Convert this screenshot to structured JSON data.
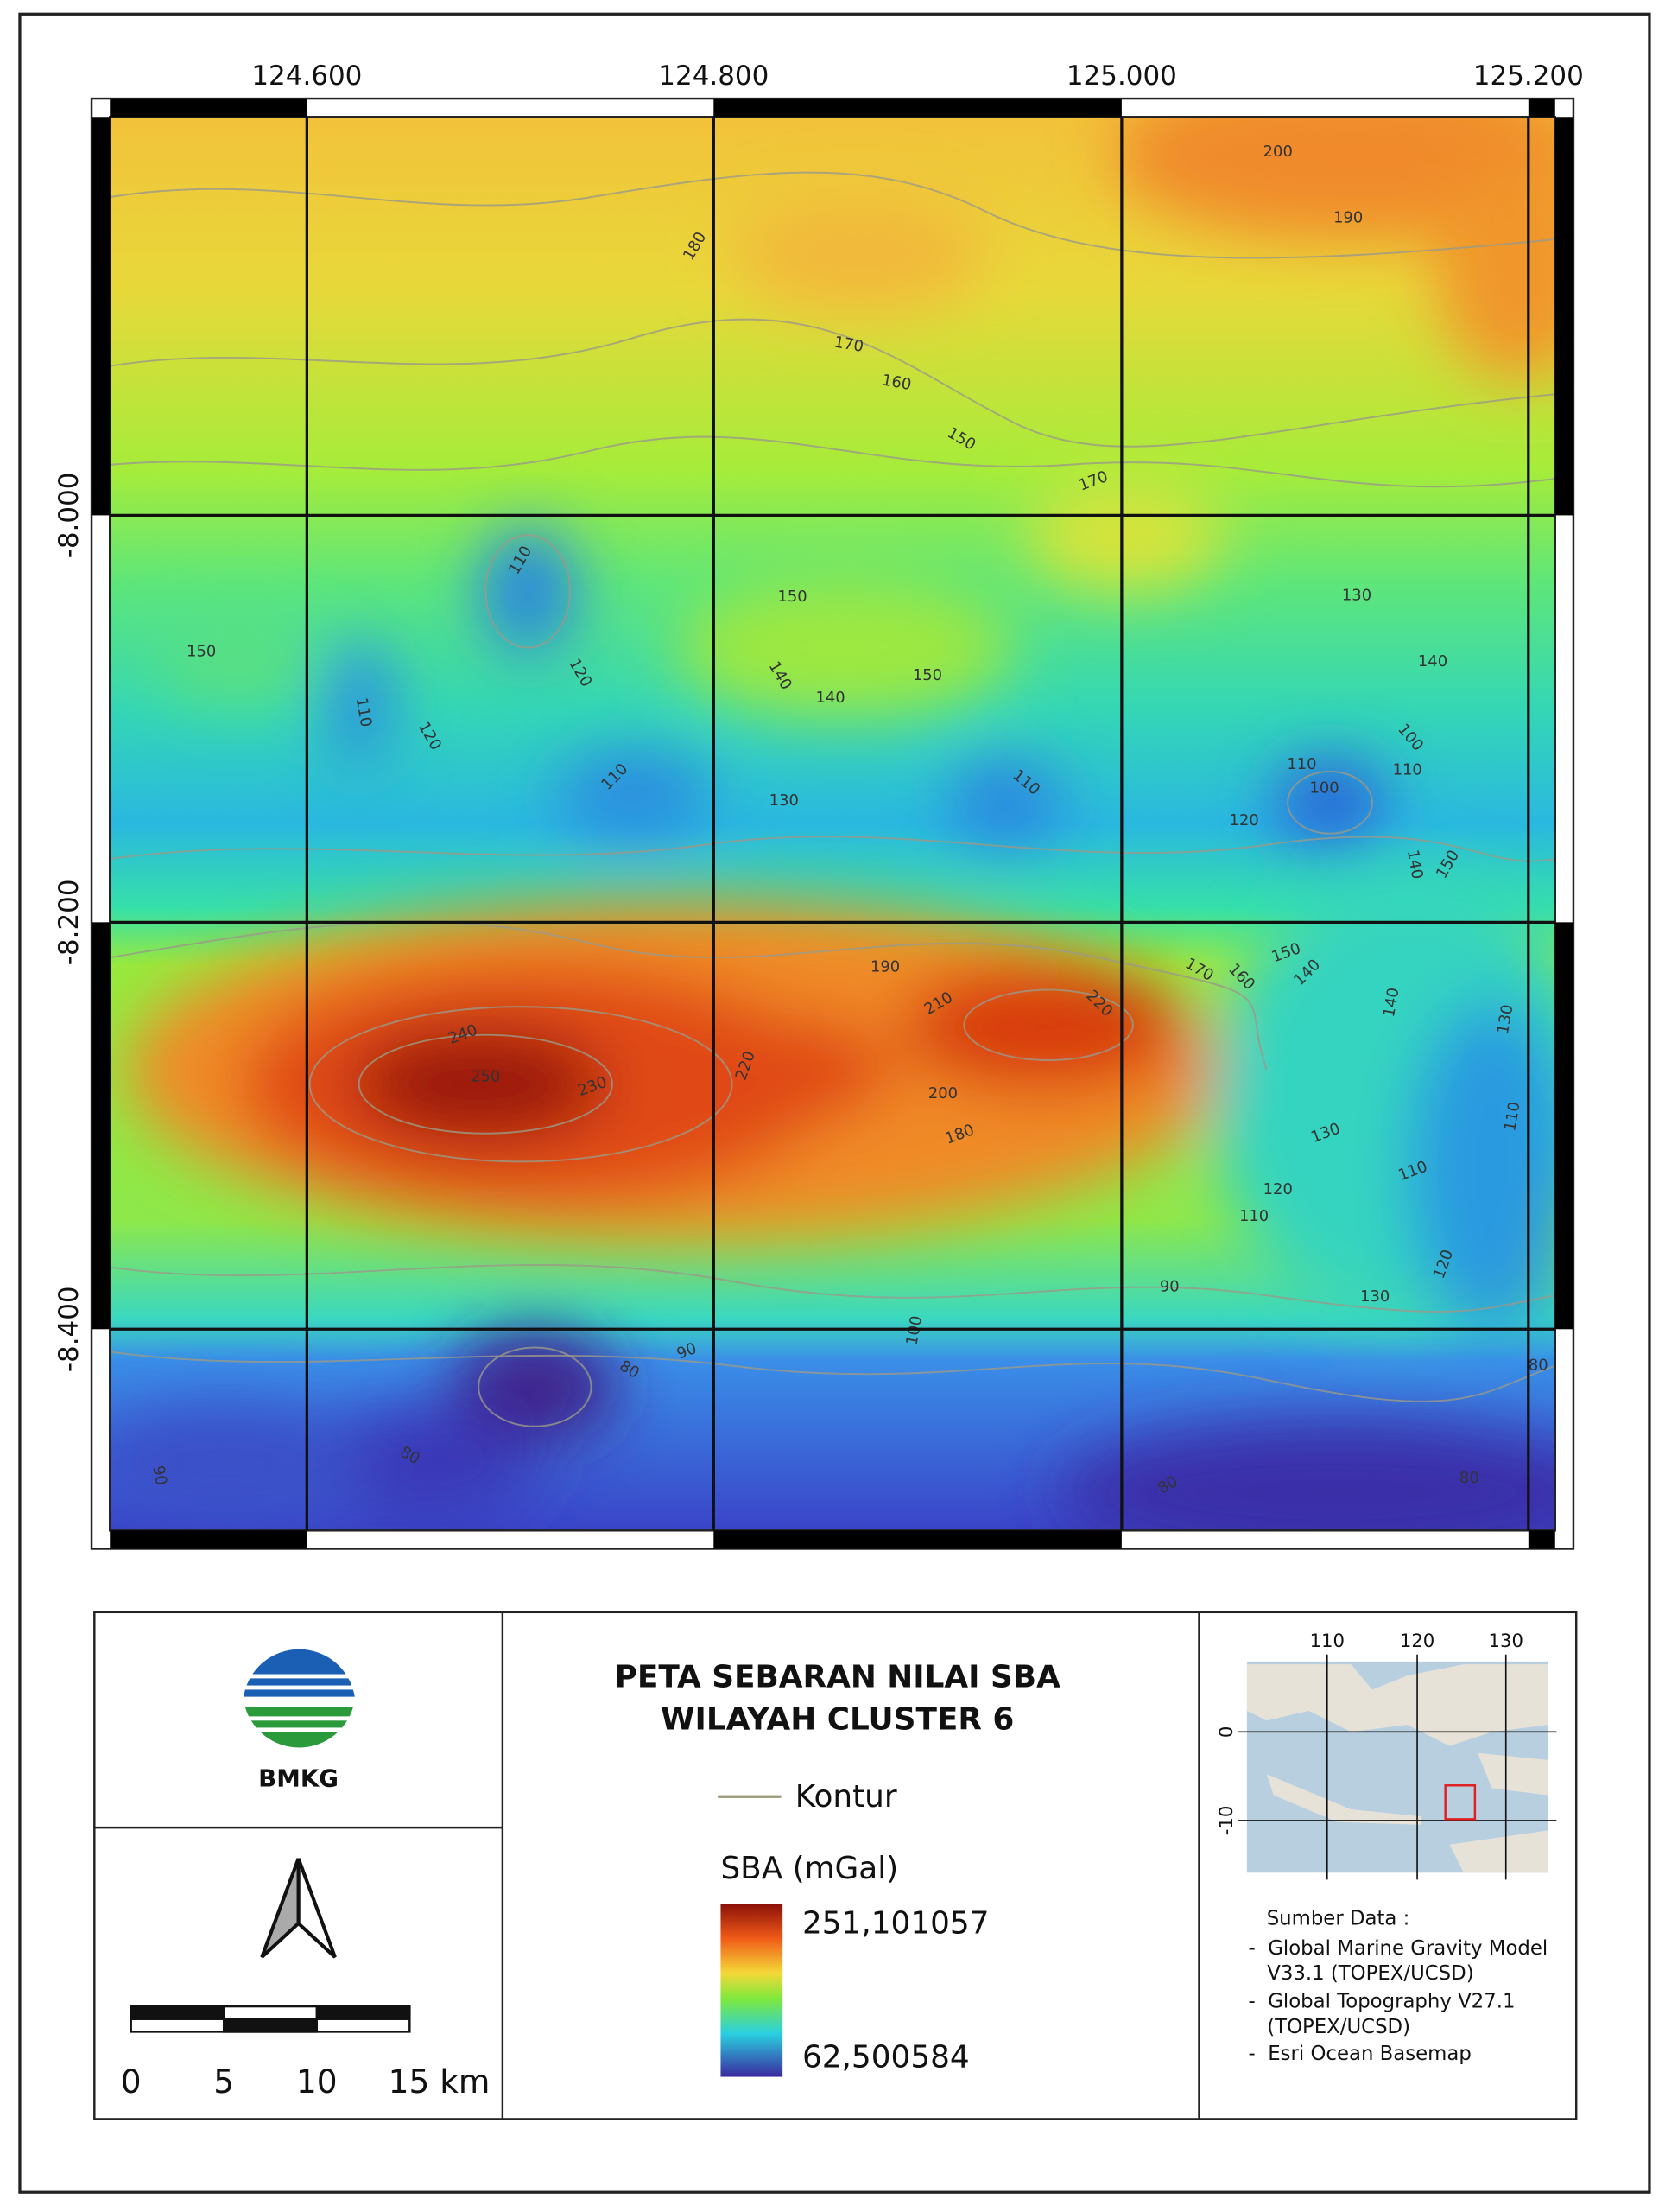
{
  "map": {
    "x_labels": [
      "124.600",
      "124.800",
      "125.000",
      "125.200"
    ],
    "y_labels": [
      "-8.000",
      "-8.200",
      "-8.400"
    ],
    "contour_labels": [
      200,
      190,
      180,
      170,
      160,
      150,
      170,
      110,
      150,
      150,
      130,
      140,
      120,
      140,
      140,
      150,
      110,
      120,
      100,
      110,
      110,
      110,
      110,
      130,
      100,
      120,
      140,
      150,
      190,
      170,
      160,
      150,
      140,
      210,
      220,
      140,
      130,
      240,
      250,
      220,
      230,
      200,
      180,
      110,
      130,
      110,
      120,
      110,
      90,
      130,
      120,
      100,
      90,
      80,
      80,
      80,
      90,
      80,
      80
    ],
    "logo_text": "BMKG",
    "scale_labels": [
      "0",
      "5",
      "10",
      "15 km"
    ],
    "title_lines": [
      "PETA SEBARAN NILAI SBA",
      "WILAYAH CLUSTER 6"
    ],
    "legend": {
      "contour": "Kontur",
      "ramp_title": "SBA (mGal)",
      "ramp_max": "251,101057",
      "ramp_min": "62,500584"
    },
    "inset": {
      "x_labels": [
        "110",
        "120",
        "130"
      ],
      "y_labels": [
        "0",
        "-10"
      ]
    },
    "sources": {
      "title": "Sumber Data :",
      "items": [
        "-  Global Marine Gravity Model",
        "   V33.1 (TOPEX/UCSD)",
        "-  Global Topography V27.1",
        "   (TOPEX/UCSD)",
        "-  Esri Ocean Basemap"
      ]
    }
  }
}
